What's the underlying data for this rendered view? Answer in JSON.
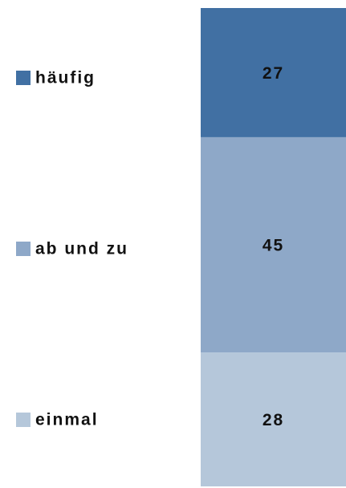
{
  "chart_data": {
    "type": "stacked-bar",
    "series": [
      {
        "name": "einmal",
        "color": "#b5c7da",
        "values": [
          28
        ]
      },
      {
        "name": "ab und zu",
        "color": "#8ea8c8",
        "values": [
          45
        ]
      },
      {
        "name": "häufig",
        "color": "#4170a3",
        "values": [
          27
        ]
      }
    ],
    "ylim": [
      0,
      100
    ]
  }
}
